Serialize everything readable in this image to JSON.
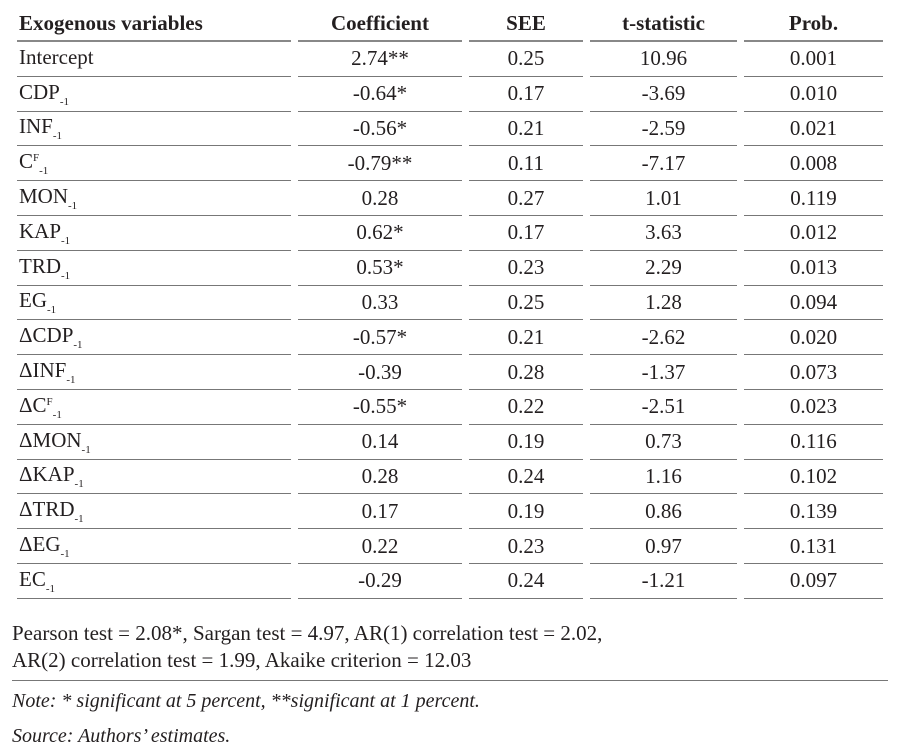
{
  "headers": [
    "Exogenous variables",
    "Coefficient",
    "SEE",
    "t-statistic",
    "Prob."
  ],
  "rows": [
    {
      "prefix": "",
      "var": "Intercept",
      "sup": "",
      "sub": "",
      "coef": "2.74**",
      "see": "0.25",
      "t": "10.96",
      "p": "0.001"
    },
    {
      "prefix": "",
      "var": "CDP",
      "sup": "",
      "sub": "-1",
      "coef": "-0.64*",
      "see": "0.17",
      "t": "-3.69",
      "p": "0.010"
    },
    {
      "prefix": "",
      "var": "INF",
      "sup": "",
      "sub": "-1",
      "coef": "-0.56*",
      "see": "0.21",
      "t": "-2.59",
      "p": "0.021"
    },
    {
      "prefix": "",
      "var": "C",
      "sup": "F",
      "sub": "-1",
      "coef": "-0.79**",
      "see": "0.11",
      "t": "-7.17",
      "p": "0.008"
    },
    {
      "prefix": "",
      "var": "MON",
      "sup": "",
      "sub": "-1",
      "coef": "0.28",
      "see": "0.27",
      "t": "1.01",
      "p": "0.119"
    },
    {
      "prefix": "",
      "var": "KAP",
      "sup": "",
      "sub": "-1",
      "coef": "0.62*",
      "see": "0.17",
      "t": "3.63",
      "p": "0.012"
    },
    {
      "prefix": "",
      "var": "TRD",
      "sup": "",
      "sub": "-1",
      "coef": "0.53*",
      "see": "0.23",
      "t": "2.29",
      "p": "0.013"
    },
    {
      "prefix": "",
      "var": "EG",
      "sup": "",
      "sub": "-1",
      "coef": "0.33",
      "see": "0.25",
      "t": "1.28",
      "p": "0.094"
    },
    {
      "prefix": "Δ",
      "var": "CDP",
      "sup": "",
      "sub": "-1",
      "coef": "-0.57*",
      "see": "0.21",
      "t": "-2.62",
      "p": "0.020"
    },
    {
      "prefix": "Δ",
      "var": "INF",
      "sup": "",
      "sub": "-1",
      "coef": "-0.39",
      "see": "0.28",
      "t": "-1.37",
      "p": "0.073"
    },
    {
      "prefix": "Δ",
      "var": "C",
      "sup": "F",
      "sub": "-1",
      "coef": "-0.55*",
      "see": "0.22",
      "t": "-2.51",
      "p": "0.023"
    },
    {
      "prefix": "Δ",
      "var": "MON",
      "sup": "",
      "sub": "-1",
      "coef": "0.14",
      "see": "0.19",
      "t": "0.73",
      "p": "0.116"
    },
    {
      "prefix": "Δ",
      "var": "KAP",
      "sup": "",
      "sub": "-1",
      "coef": "0.28",
      "see": "0.24",
      "t": "1.16",
      "p": "0.102"
    },
    {
      "prefix": "Δ",
      "var": "TRD",
      "sup": "",
      "sub": "-1",
      "coef": "0.17",
      "see": "0.19",
      "t": "0.86",
      "p": "0.139"
    },
    {
      "prefix": "Δ",
      "var": "EG",
      "sup": "",
      "sub": "-1",
      "coef": "0.22",
      "see": "0.23",
      "t": "0.97",
      "p": "0.131"
    },
    {
      "prefix": "",
      "var": "EC",
      "sup": "",
      "sub": "-1",
      "coef": "-0.29",
      "see": "0.24",
      "t": "-1.21",
      "p": "0.097"
    }
  ],
  "tests_line1": "Pearson test = 2.08*, Sargan test = 4.97, AR(1) correlation test = 2.02,",
  "tests_line2": "AR(2) correlation test = 1.99, Akaike criterion = 12.03",
  "note": "Note: * significant at 5 percent, **significant at 1 percent.",
  "source": "Source: Authors’ estimates."
}
